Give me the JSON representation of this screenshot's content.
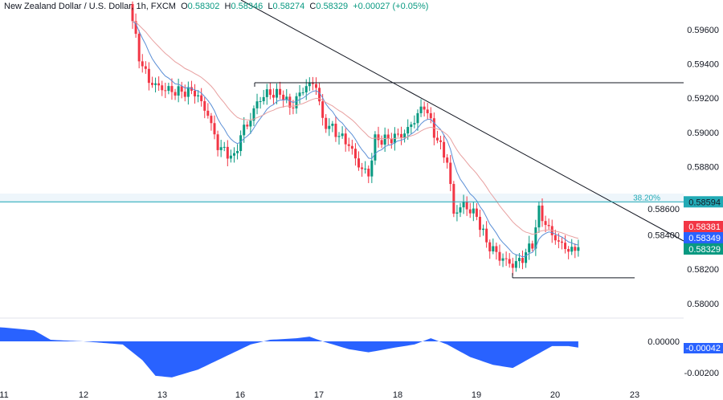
{
  "header": {
    "symbol": "New Zealand Dollar / U.S. Dollar, 1h, FXCM",
    "o_label": "O",
    "o": "0.58302",
    "h_label": "H",
    "h": "0.58346",
    "l_label": "L",
    "l": "0.58274",
    "c_label": "C",
    "c": "0.58329",
    "change": "+0.00027 (+0.05%)"
  },
  "colors": {
    "up": "#089981",
    "down": "#f23645",
    "fast_ma": "#5b8fd6",
    "slow_ma": "#e8a0a0",
    "osc": "#2962ff",
    "fib": "#22aab5"
  },
  "chart_data": {
    "type": "candlestick",
    "price_axis": {
      "ticks": [
        "0.59600",
        "0.59400",
        "0.59200",
        "0.59000",
        "0.58800",
        "0.58600",
        "0.58400",
        "0.58200",
        "0.58000"
      ],
      "range": [
        0.579,
        0.5975
      ]
    },
    "time_axis": {
      "ticks": [
        "11",
        "12",
        "13",
        "16",
        "17",
        "18",
        "19",
        "20",
        "23"
      ]
    },
    "close_anchors": [
      [
        0,
        0.5965
      ],
      [
        2,
        0.5945
      ],
      [
        5,
        0.5932
      ],
      [
        9,
        0.5928
      ],
      [
        13,
        0.5925
      ],
      [
        19,
        0.5922
      ],
      [
        23,
        0.5908
      ],
      [
        26,
        0.589
      ],
      [
        31,
        0.5885
      ],
      [
        33,
        0.59
      ],
      [
        36,
        0.591
      ],
      [
        38,
        0.592
      ],
      [
        41,
        0.5925
      ],
      [
        46,
        0.5922
      ],
      [
        48,
        0.5913
      ],
      [
        53,
        0.5925
      ],
      [
        56,
        0.5926
      ],
      [
        58,
        0.5905
      ],
      [
        61,
        0.5902
      ],
      [
        66,
        0.5895
      ],
      [
        69,
        0.5883
      ],
      [
        72,
        0.5877
      ],
      [
        74,
        0.5897
      ],
      [
        78,
        0.5895
      ],
      [
        83,
        0.5897
      ],
      [
        86,
        0.5905
      ],
      [
        89,
        0.5915
      ],
      [
        92,
        0.59
      ],
      [
        96,
        0.5885
      ],
      [
        98,
        0.5855
      ],
      [
        101,
        0.586
      ],
      [
        105,
        0.5852
      ],
      [
        108,
        0.5835
      ],
      [
        112,
        0.5825
      ],
      [
        116,
        0.582
      ],
      [
        119,
        0.5825
      ],
      [
        122,
        0.5835
      ],
      [
        124,
        0.5855
      ],
      [
        127,
        0.5845
      ],
      [
        130,
        0.5838
      ],
      [
        134,
        0.5832
      ],
      [
        136,
        0.5833
      ]
    ],
    "lines": {
      "resistance": 0.5929,
      "support": 0.5815,
      "fib_level": 0.58594,
      "fib_label": "38.20%"
    },
    "price_labels": {
      "fib": "0.58594",
      "slow_ma": "0.58381",
      "fast_ma": "0.58349",
      "last": "0.58329"
    },
    "oscillator": {
      "ticks": [
        "0.00000",
        "-0.00200"
      ],
      "last": "-0.00042",
      "anchors": [
        [
          -40,
          0.0009
        ],
        [
          -30,
          0.0007
        ],
        [
          -25,
          0.0001
        ],
        [
          -15,
          0
        ],
        [
          -3,
          -0.0002
        ],
        [
          3,
          -0.0012
        ],
        [
          7,
          -0.0022
        ],
        [
          12,
          -0.0023
        ],
        [
          20,
          -0.0018
        ],
        [
          28,
          -0.001
        ],
        [
          36,
          -0.0002
        ],
        [
          42,
          0.0001
        ],
        [
          50,
          0.0002
        ],
        [
          54,
          0.0003
        ],
        [
          58,
          0
        ],
        [
          66,
          -0.0005
        ],
        [
          72,
          -0.0007
        ],
        [
          80,
          -0.0004
        ],
        [
          86,
          -0.0002
        ],
        [
          91,
          0.0002
        ],
        [
          96,
          -0.0002
        ],
        [
          103,
          -0.001
        ],
        [
          110,
          -0.0015
        ],
        [
          116,
          -0.0017
        ],
        [
          122,
          -0.001
        ],
        [
          128,
          -0.0003
        ],
        [
          133,
          -0.0003
        ],
        [
          136,
          -0.0004
        ]
      ]
    }
  }
}
